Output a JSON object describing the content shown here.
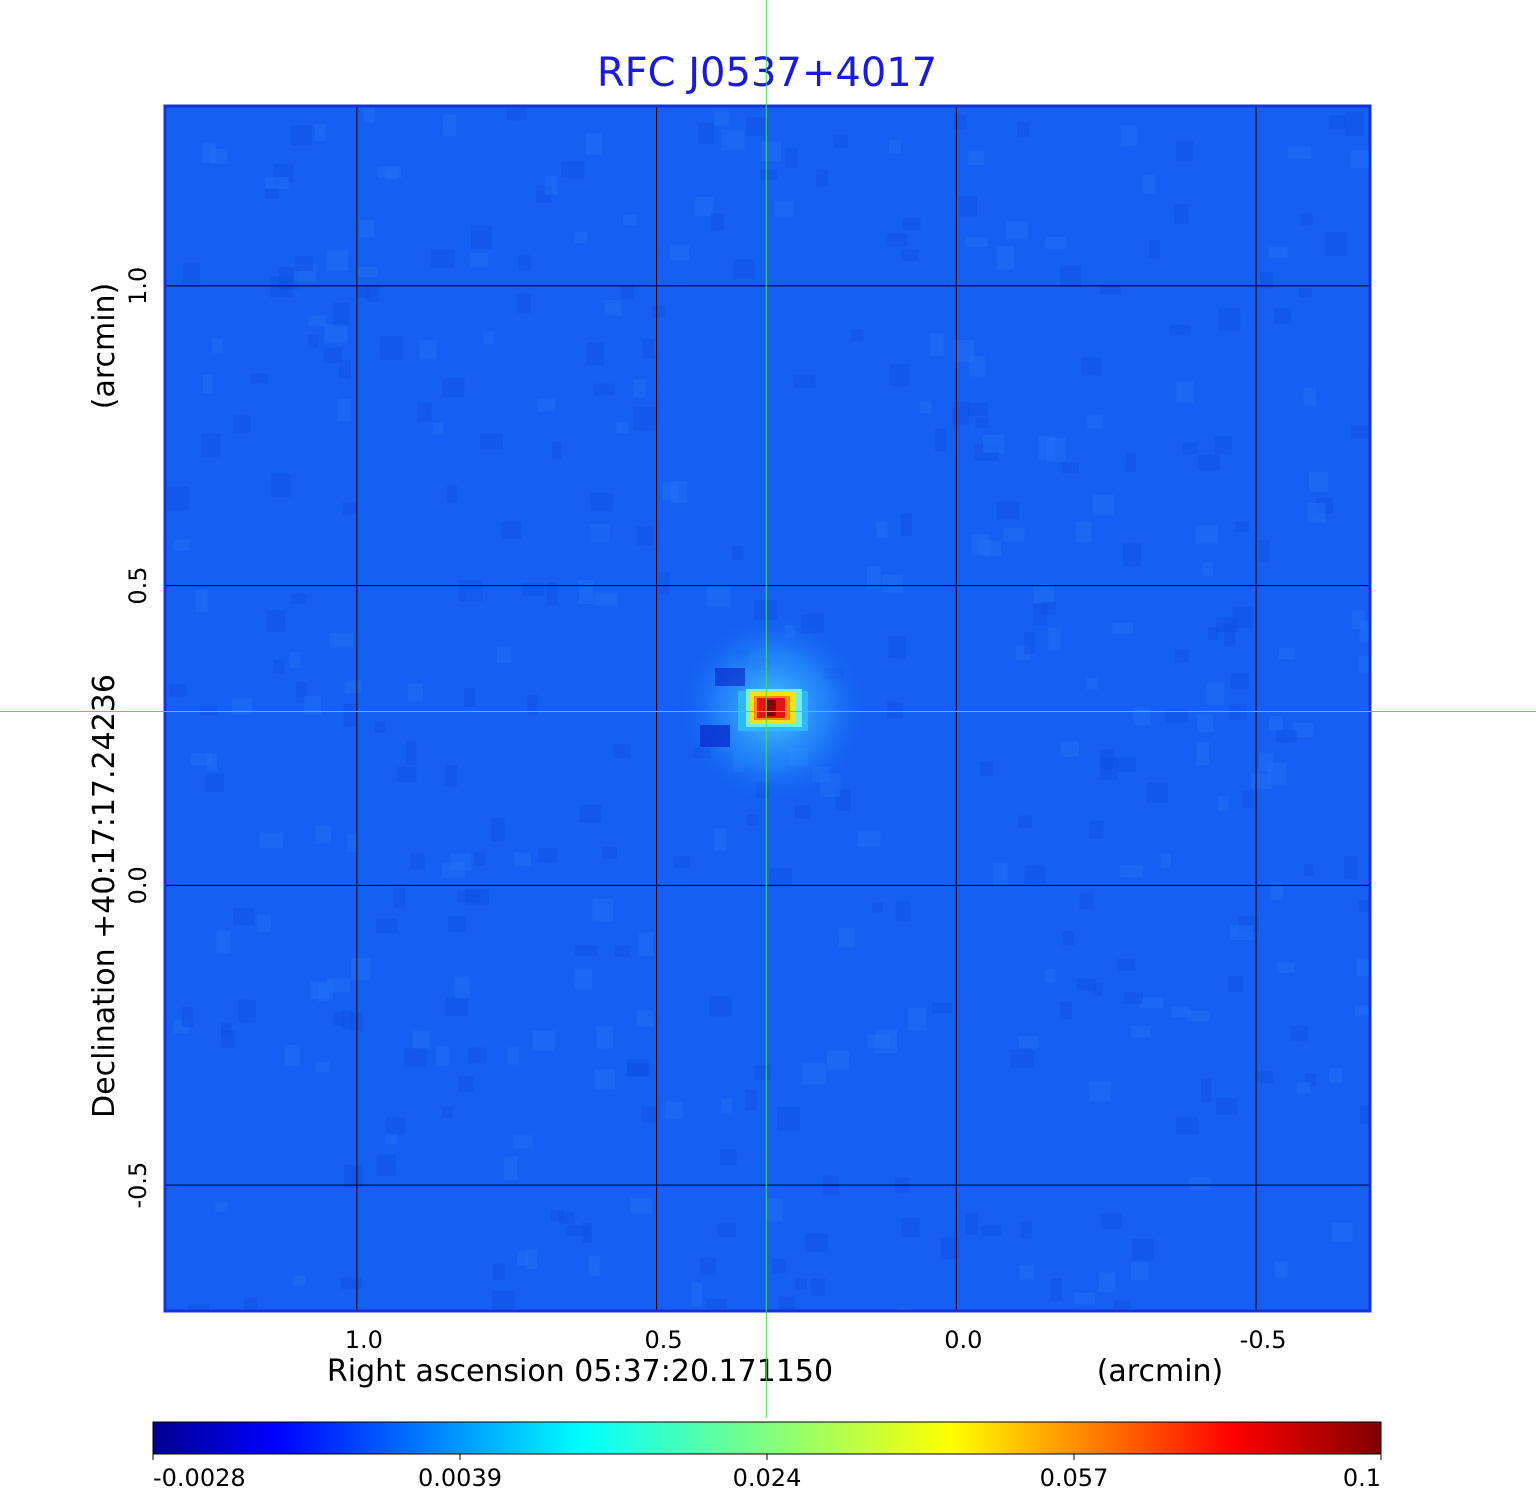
{
  "chart_data": {
    "type": "heatmap",
    "title": "RFC J0537+4017",
    "xlabel": "Right ascension  05:37:20.171150",
    "xlabel_unit": "(arcmin)",
    "ylabel": "Declination  +40:17:17.24236",
    "ylabel_unit": "(arcmin)",
    "xlim": [
      1.32,
      -0.69
    ],
    "ylim": [
      -0.71,
      1.3
    ],
    "x_ticks": [
      {
        "value": 1.0,
        "label": "1.0"
      },
      {
        "value": 0.5,
        "label": "0.5"
      },
      {
        "value": 0.0,
        "label": "0.0"
      },
      {
        "value": -0.5,
        "label": "-0.5"
      }
    ],
    "y_ticks": [
      {
        "value": 1.0,
        "label": "1.0"
      },
      {
        "value": 0.5,
        "label": "0.5"
      },
      {
        "value": 0.0,
        "label": "0.0"
      },
      {
        "value": -0.5,
        "label": "-0.5"
      }
    ],
    "grid": true,
    "source_peak": {
      "x": 0.32,
      "y": 0.29
    },
    "crosshair": {
      "x": 0.317,
      "y": 0.29,
      "color": "#44e044"
    },
    "colormap": "jet",
    "colorbar": {
      "placement": "bottom",
      "ticks": [
        "-0.0028",
        "0.0039",
        "0.024",
        "0.057",
        "0.1"
      ]
    },
    "colors": {
      "background_value": "#1560f2",
      "title": "#1a1adb",
      "frame": "#1533d6",
      "grid": "#000000"
    }
  }
}
